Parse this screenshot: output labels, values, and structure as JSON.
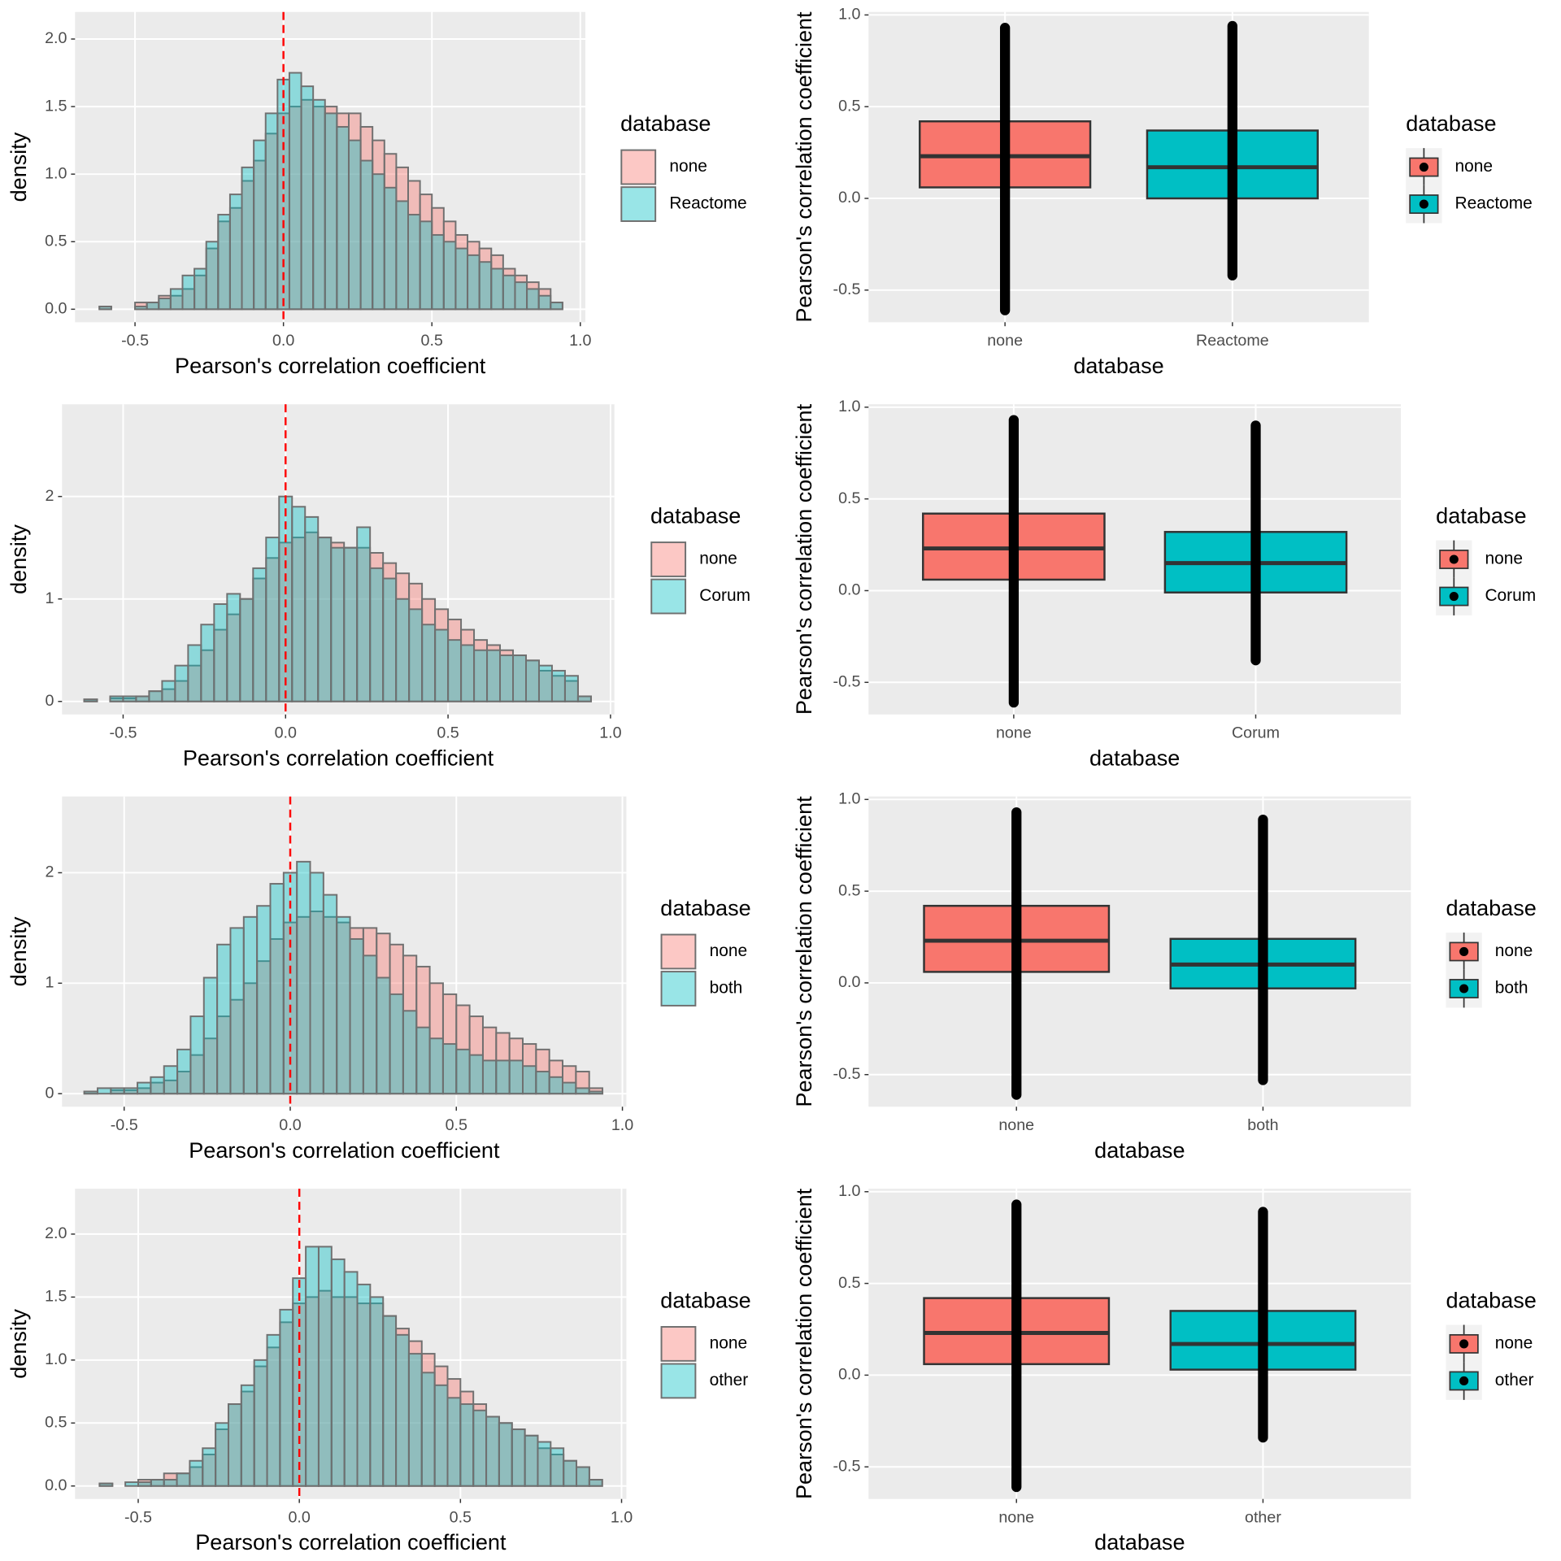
{
  "chart_data": [
    {
      "type": "histogram",
      "x_label": "Pearson's correlation coefficient",
      "y_label": "density",
      "legend_title": "database",
      "bins": [
        -0.62,
        -0.58,
        -0.54,
        -0.5,
        -0.46,
        -0.42,
        -0.38,
        -0.34,
        -0.3,
        -0.26,
        -0.22,
        -0.18,
        -0.14,
        -0.1,
        -0.06,
        -0.02,
        0.02,
        0.06,
        0.1,
        0.14,
        0.18,
        0.22,
        0.26,
        0.3,
        0.34,
        0.38,
        0.42,
        0.46,
        0.5,
        0.54,
        0.58,
        0.62,
        0.66,
        0.7,
        0.74,
        0.78,
        0.82,
        0.86,
        0.9,
        0.94
      ],
      "series": [
        {
          "name": "none",
          "color": "#F8766D",
          "values": [
            0.02,
            0,
            0,
            0.05,
            0.05,
            0.1,
            0.1,
            0.15,
            0.25,
            0.45,
            0.65,
            0.75,
            0.95,
            1.1,
            1.3,
            1.45,
            1.5,
            1.55,
            1.5,
            1.5,
            1.45,
            1.45,
            1.35,
            1.25,
            1.15,
            1.05,
            0.95,
            0.85,
            0.75,
            0.65,
            0.55,
            0.5,
            0.45,
            0.4,
            0.3,
            0.25,
            0.2,
            0.15,
            0.05
          ]
        },
        {
          "name": "Reactome",
          "color": "#00BFC4",
          "values": [
            0.02,
            0,
            0,
            0.02,
            0.05,
            0.08,
            0.15,
            0.25,
            0.3,
            0.5,
            0.7,
            0.85,
            1.05,
            1.25,
            1.45,
            1.7,
            1.75,
            1.65,
            1.55,
            1.45,
            1.35,
            1.25,
            1.1,
            1.0,
            0.9,
            0.8,
            0.7,
            0.65,
            0.55,
            0.5,
            0.45,
            0.4,
            0.35,
            0.3,
            0.25,
            0.2,
            0.15,
            0.1,
            0.05
          ]
        }
      ],
      "vline": 0,
      "vline_color": "#ff0000",
      "xlim": [
        -0.702,
        1.017
      ],
      "xticks": [
        -0.5,
        {
          "value": 0,
          "label": "0.0"
        },
        0.5,
        {
          "value": 1,
          "label": "1.0"
        }
      ],
      "ylim": [
        -0.096,
        2.2
      ],
      "yticks": [
        {
          "value": 0,
          "label": "0.0"
        },
        0.5,
        {
          "value": 1,
          "label": "1.0"
        },
        1.5,
        {
          "value": 2,
          "label": "2.0"
        }
      ]
    },
    {
      "type": "box",
      "x_label": "database",
      "y_label": "Pearson's correlation coefficient",
      "legend_title": "database",
      "categories": [
        "none",
        "Reactome"
      ],
      "colors": [
        "#F8766D",
        "#00BFC4"
      ],
      "boxes": [
        {
          "min": -0.61,
          "q1": 0.06,
          "median": 0.23,
          "q3": 0.42,
          "max": 0.93
        },
        {
          "min": -0.42,
          "q1": 0.0,
          "median": 0.17,
          "q3": 0.37,
          "max": 0.94
        }
      ],
      "ylim": [
        -0.675,
        1.016
      ],
      "yticks": [
        -0.5,
        {
          "value": 0,
          "label": "0.0"
        },
        0.5,
        {
          "value": 1,
          "label": "1.0"
        }
      ]
    },
    {
      "type": "histogram",
      "x_label": "Pearson's correlation coefficient",
      "y_label": "density",
      "legend_title": "database",
      "bins": [
        -0.62,
        -0.58,
        -0.54,
        -0.5,
        -0.46,
        -0.42,
        -0.38,
        -0.34,
        -0.3,
        -0.26,
        -0.22,
        -0.18,
        -0.14,
        -0.1,
        -0.06,
        -0.02,
        0.02,
        0.06,
        0.1,
        0.14,
        0.18,
        0.22,
        0.26,
        0.3,
        0.34,
        0.38,
        0.42,
        0.46,
        0.5,
        0.54,
        0.58,
        0.62,
        0.66,
        0.7,
        0.74,
        0.78,
        0.82,
        0.86,
        0.9,
        0.94
      ],
      "series": [
        {
          "name": "none",
          "color": "#F8766D",
          "values": [
            0.02,
            0,
            0.03,
            0.03,
            0.05,
            0.1,
            0.12,
            0.2,
            0.35,
            0.5,
            0.7,
            0.85,
            1.0,
            1.2,
            1.4,
            1.55,
            1.6,
            1.65,
            1.6,
            1.55,
            1.5,
            1.5,
            1.45,
            1.35,
            1.25,
            1.15,
            1.0,
            0.9,
            0.8,
            0.7,
            0.6,
            0.55,
            0.5,
            0.45,
            0.4,
            0.3,
            0.25,
            0.2,
            0.05
          ]
        },
        {
          "name": "Corum",
          "color": "#00BFC4",
          "values": [
            0.02,
            0,
            0.05,
            0.05,
            0.05,
            0.1,
            0.2,
            0.35,
            0.55,
            0.75,
            0.95,
            1.05,
            1.0,
            1.3,
            1.6,
            2.0,
            1.9,
            1.8,
            1.6,
            1.5,
            1.5,
            1.7,
            1.3,
            1.2,
            1.0,
            0.9,
            0.75,
            0.7,
            0.6,
            0.55,
            0.5,
            0.5,
            0.45,
            0.45,
            0.4,
            0.35,
            0.3,
            0.25,
            0.05
          ]
        }
      ],
      "vline": 0,
      "vline_color": "#ff0000",
      "xlim": [
        -0.688,
        1.012
      ],
      "xticks": [
        -0.5,
        {
          "value": 0,
          "label": "0.0"
        },
        0.5,
        {
          "value": 1,
          "label": "1.0"
        }
      ],
      "ylim": [
        -0.127,
        2.9
      ],
      "yticks": [
        0,
        1,
        2
      ]
    },
    {
      "type": "box",
      "x_label": "database",
      "y_label": "Pearson's correlation coefficient",
      "legend_title": "database",
      "categories": [
        "none",
        "Corum"
      ],
      "colors": [
        "#F8766D",
        "#00BFC4"
      ],
      "boxes": [
        {
          "min": -0.61,
          "q1": 0.06,
          "median": 0.23,
          "q3": 0.42,
          "max": 0.93
        },
        {
          "min": -0.38,
          "q1": -0.01,
          "median": 0.15,
          "q3": 0.32,
          "max": 0.9
        }
      ],
      "ylim": [
        -0.675,
        1.016
      ],
      "yticks": [
        -0.5,
        {
          "value": 0,
          "label": "0.0"
        },
        0.5,
        {
          "value": 1,
          "label": "1.0"
        }
      ]
    },
    {
      "type": "histogram",
      "x_label": "Pearson's correlation coefficient",
      "y_label": "density",
      "legend_title": "database",
      "bins": [
        -0.62,
        -0.58,
        -0.54,
        -0.5,
        -0.46,
        -0.42,
        -0.38,
        -0.34,
        -0.3,
        -0.26,
        -0.22,
        -0.18,
        -0.14,
        -0.1,
        -0.06,
        -0.02,
        0.02,
        0.06,
        0.1,
        0.14,
        0.18,
        0.22,
        0.26,
        0.3,
        0.34,
        0.38,
        0.42,
        0.46,
        0.5,
        0.54,
        0.58,
        0.62,
        0.66,
        0.7,
        0.74,
        0.78,
        0.82,
        0.86,
        0.9,
        0.94
      ],
      "series": [
        {
          "name": "none",
          "color": "#F8766D",
          "values": [
            0.02,
            0,
            0.03,
            0.03,
            0.05,
            0.1,
            0.12,
            0.2,
            0.35,
            0.5,
            0.7,
            0.85,
            1.0,
            1.2,
            1.4,
            1.55,
            1.6,
            1.65,
            1.6,
            1.55,
            1.5,
            1.5,
            1.45,
            1.35,
            1.25,
            1.15,
            1.0,
            0.9,
            0.8,
            0.7,
            0.6,
            0.55,
            0.5,
            0.45,
            0.4,
            0.3,
            0.25,
            0.2,
            0.05
          ]
        },
        {
          "name": "both",
          "color": "#00BFC4",
          "values": [
            0.02,
            0.05,
            0.05,
            0.05,
            0.1,
            0.15,
            0.25,
            0.4,
            0.7,
            1.05,
            1.35,
            1.5,
            1.6,
            1.7,
            1.9,
            2.0,
            2.1,
            2.0,
            1.8,
            1.6,
            1.4,
            1.25,
            1.05,
            0.9,
            0.75,
            0.6,
            0.5,
            0.45,
            0.4,
            0.35,
            0.3,
            0.3,
            0.3,
            0.25,
            0.2,
            0.15,
            0.1,
            0.05,
            0.02
          ]
        }
      ],
      "vline": 0,
      "vline_color": "#ff0000",
      "xlim": [
        -0.687,
        1.012
      ],
      "xticks": [
        -0.5,
        {
          "value": 0,
          "label": "0.0"
        },
        0.5,
        {
          "value": 1,
          "label": "1.0"
        }
      ],
      "ylim": [
        -0.118,
        2.69
      ],
      "yticks": [
        0,
        1,
        2
      ]
    },
    {
      "type": "box",
      "x_label": "database",
      "y_label": "Pearson's correlation coefficient",
      "legend_title": "database",
      "categories": [
        "none",
        "both"
      ],
      "colors": [
        "#F8766D",
        "#00BFC4"
      ],
      "boxes": [
        {
          "min": -0.61,
          "q1": 0.06,
          "median": 0.23,
          "q3": 0.42,
          "max": 0.93
        },
        {
          "min": -0.53,
          "q1": -0.03,
          "median": 0.1,
          "q3": 0.24,
          "max": 0.89
        }
      ],
      "ylim": [
        -0.675,
        1.016
      ],
      "yticks": [
        -0.5,
        {
          "value": 0,
          "label": "0.0"
        },
        0.5,
        {
          "value": 1,
          "label": "1.0"
        }
      ]
    },
    {
      "type": "histogram",
      "x_label": "Pearson's correlation coefficient",
      "y_label": "density",
      "legend_title": "database",
      "bins": [
        -0.62,
        -0.58,
        -0.54,
        -0.5,
        -0.46,
        -0.42,
        -0.38,
        -0.34,
        -0.3,
        -0.26,
        -0.22,
        -0.18,
        -0.14,
        -0.1,
        -0.06,
        -0.02,
        0.02,
        0.06,
        0.1,
        0.14,
        0.18,
        0.22,
        0.26,
        0.3,
        0.34,
        0.38,
        0.42,
        0.46,
        0.5,
        0.54,
        0.58,
        0.62,
        0.66,
        0.7,
        0.74,
        0.78,
        0.82,
        0.86,
        0.9,
        0.94
      ],
      "series": [
        {
          "name": "none",
          "color": "#F8766D",
          "values": [
            0.02,
            0,
            0,
            0.05,
            0.05,
            0.1,
            0.1,
            0.15,
            0.25,
            0.45,
            0.65,
            0.75,
            0.95,
            1.1,
            1.3,
            1.45,
            1.5,
            1.55,
            1.5,
            1.5,
            1.45,
            1.45,
            1.35,
            1.25,
            1.15,
            1.05,
            0.95,
            0.85,
            0.75,
            0.65,
            0.55,
            0.5,
            0.45,
            0.4,
            0.3,
            0.25,
            0.2,
            0.15,
            0.05
          ]
        },
        {
          "name": "other",
          "color": "#00BFC4",
          "values": [
            0.02,
            0,
            0.03,
            0.03,
            0.05,
            0.05,
            0.1,
            0.2,
            0.3,
            0.5,
            0.65,
            0.8,
            1.0,
            1.2,
            1.4,
            1.65,
            1.9,
            1.9,
            1.8,
            1.7,
            1.6,
            1.5,
            1.35,
            1.2,
            1.05,
            0.9,
            0.8,
            0.7,
            0.65,
            0.6,
            0.55,
            0.5,
            0.45,
            0.4,
            0.35,
            0.3,
            0.2,
            0.15,
            0.05
          ]
        }
      ],
      "vline": 0,
      "vline_color": "#ff0000",
      "xlim": [
        -0.696,
        1.015
      ],
      "xticks": [
        -0.5,
        {
          "value": 0,
          "label": "0.0"
        },
        0.5,
        {
          "value": 1,
          "label": "1.0"
        }
      ],
      "ylim": [
        -0.103,
        2.36
      ],
      "yticks": [
        {
          "value": 0,
          "label": "0.0"
        },
        0.5,
        {
          "value": 1,
          "label": "1.0"
        },
        1.5,
        {
          "value": 2,
          "label": "2.0"
        }
      ]
    },
    {
      "type": "box",
      "x_label": "database",
      "y_label": "Pearson's correlation coefficient",
      "legend_title": "database",
      "categories": [
        "none",
        "other"
      ],
      "colors": [
        "#F8766D",
        "#00BFC4"
      ],
      "boxes": [
        {
          "min": -0.61,
          "q1": 0.06,
          "median": 0.23,
          "q3": 0.42,
          "max": 0.93
        },
        {
          "min": -0.34,
          "q1": 0.03,
          "median": 0.17,
          "q3": 0.35,
          "max": 0.89
        }
      ],
      "ylim": [
        -0.675,
        1.016
      ],
      "yticks": [
        -0.5,
        {
          "value": 0,
          "label": "0.0"
        },
        0.5,
        {
          "value": 1,
          "label": "1.0"
        }
      ]
    }
  ]
}
